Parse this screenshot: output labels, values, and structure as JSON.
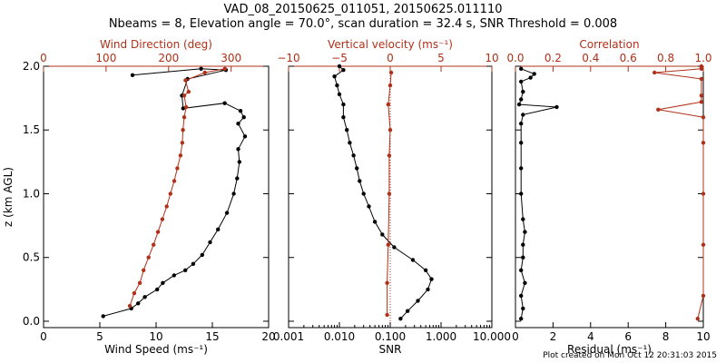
{
  "title_line1": "VAD_08_20150625_011051, 20150625.011110",
  "title_line2": "Nbeams = 8, Elevation angle = 70.0°, scan duration = 32.4 s, SNR Threshold = 0.008",
  "footer": "Plot created on Mon Oct 12 20:31:03 2015",
  "colors": {
    "black": "#000000",
    "red": "#b03018"
  },
  "chart_data": [
    {
      "type": "line",
      "ylabel": "z (km AGL)",
      "ylim": [
        -0.05,
        2.0
      ],
      "yticks": [
        0.0,
        0.5,
        1.0,
        1.5,
        2.0
      ],
      "ytick_labels": [
        "0.0",
        "0.5",
        "1.0",
        "1.5",
        "2.0"
      ],
      "bottom_axis": {
        "label": "Wind Speed (ms⁻¹)",
        "range": [
          0,
          20
        ],
        "ticks": [
          0,
          5,
          10,
          15,
          20
        ],
        "tick_labels": [
          "0",
          "5",
          "10",
          "15",
          "20"
        ]
      },
      "top_axis": {
        "label": "Wind Direction (deg)",
        "range": [
          0,
          360
        ],
        "ticks": [
          0,
          100,
          200,
          300
        ],
        "tick_labels": [
          "0",
          "100",
          "200",
          "300"
        ]
      },
      "series": [
        {
          "axis": "bottom",
          "color": "#000000",
          "points": [
            [
              5.3,
              0.04
            ],
            [
              7.8,
              0.1
            ],
            [
              8.4,
              0.14
            ],
            [
              9.0,
              0.19
            ],
            [
              10.1,
              0.25
            ],
            [
              10.6,
              0.3
            ],
            [
              11.6,
              0.36
            ],
            [
              12.6,
              0.4
            ],
            [
              13.3,
              0.45
            ],
            [
              14.1,
              0.52
            ],
            [
              14.8,
              0.62
            ],
            [
              15.5,
              0.72
            ],
            [
              16.3,
              0.85
            ],
            [
              16.9,
              1.0
            ],
            [
              17.2,
              1.12
            ],
            [
              17.4,
              1.25
            ],
            [
              17.3,
              1.35
            ],
            [
              17.9,
              1.45
            ],
            [
              17.3,
              1.55
            ],
            [
              17.8,
              1.6
            ],
            [
              17.5,
              1.65
            ],
            [
              16.1,
              1.71
            ],
            [
              12.4,
              1.67
            ],
            [
              12.3,
              1.77
            ],
            [
              12.8,
              1.9
            ],
            [
              16.2,
              1.97
            ],
            [
              14.0,
              1.98
            ],
            [
              7.9,
              1.93
            ]
          ]
        },
        {
          "axis": "top",
          "color": "#b03018",
          "points": [
            [
              138,
              0.12
            ],
            [
              145,
              0.22
            ],
            [
              154,
              0.3
            ],
            [
              160,
              0.4
            ],
            [
              168,
              0.5
            ],
            [
              176,
              0.6
            ],
            [
              183,
              0.7
            ],
            [
              190,
              0.8
            ],
            [
              197,
              0.9
            ],
            [
              203,
              1.0
            ],
            [
              209,
              1.1
            ],
            [
              214,
              1.2
            ],
            [
              219,
              1.3
            ],
            [
              222,
              1.4
            ],
            [
              223,
              1.5
            ],
            [
              225,
              1.6
            ],
            [
              228,
              1.68
            ],
            [
              225,
              1.77
            ],
            [
              232,
              1.8
            ],
            [
              227,
              1.89
            ],
            [
              258,
              1.95
            ],
            [
              290,
              1.98
            ]
          ]
        }
      ]
    },
    {
      "type": "line",
      "bottom_axis": {
        "label": "SNR",
        "scale": "log",
        "range": [
          0.001,
          10
        ],
        "ticks": [
          0.001,
          0.01,
          0.1,
          1,
          10
        ],
        "tick_labels": [
          "0.001",
          "0.010",
          "0.100",
          "1.000",
          "10.000"
        ]
      },
      "top_axis": {
        "label": "Vertical velocity (ms⁻¹)",
        "range": [
          -10,
          10
        ],
        "ticks": [
          -10,
          -5,
          0,
          5,
          10
        ],
        "tick_labels": [
          "−10",
          "−5",
          "0",
          "5",
          "10"
        ]
      },
      "series": [
        {
          "axis": "bottom",
          "color": "#000000",
          "points": [
            [
              0.16,
              0.02
            ],
            [
              0.22,
              0.08
            ],
            [
              0.35,
              0.16
            ],
            [
              0.55,
              0.25
            ],
            [
              0.65,
              0.33
            ],
            [
              0.5,
              0.4
            ],
            [
              0.28,
              0.48
            ],
            [
              0.12,
              0.58
            ],
            [
              0.07,
              0.68
            ],
            [
              0.05,
              0.78
            ],
            [
              0.038,
              0.9
            ],
            [
              0.03,
              1.0
            ],
            [
              0.025,
              1.1
            ],
            [
              0.022,
              1.2
            ],
            [
              0.019,
              1.3
            ],
            [
              0.016,
              1.4
            ],
            [
              0.014,
              1.5
            ],
            [
              0.012,
              1.6
            ],
            [
              0.012,
              1.7
            ],
            [
              0.01,
              1.78
            ],
            [
              0.009,
              1.85
            ],
            [
              0.008,
              1.92
            ],
            [
              0.012,
              1.97
            ],
            [
              0.01,
              2.0
            ]
          ]
        },
        {
          "axis": "top",
          "color": "#b03018",
          "points": [
            [
              -0.3,
              0.05
            ],
            [
              -0.3,
              0.3
            ],
            [
              -0.2,
              0.6
            ],
            [
              -0.1,
              1.0
            ],
            [
              -0.1,
              1.3
            ],
            [
              0.0,
              1.5
            ],
            [
              -0.2,
              1.7
            ],
            [
              0.0,
              1.85
            ],
            [
              0.1,
              1.95
            ]
          ]
        },
        {
          "axis": "top",
          "color": "#b03018",
          "style": "dotted",
          "points": [
            [
              0,
              0.0
            ],
            [
              0,
              2.0
            ]
          ]
        }
      ]
    },
    {
      "type": "line",
      "bottom_axis": {
        "label": "Residual (ms⁻¹)",
        "range": [
          0,
          10
        ],
        "ticks": [
          0,
          2,
          4,
          6,
          8,
          10
        ],
        "tick_labels": [
          "0",
          "2",
          "4",
          "6",
          "8",
          "10"
        ]
      },
      "top_axis": {
        "label": "Correlation",
        "range": [
          0,
          1
        ],
        "ticks": [
          0,
          0.2,
          0.4,
          0.6,
          0.8,
          1.0
        ],
        "tick_labels": [
          "0.0",
          "0.2",
          "0.4",
          "0.6",
          "0.8",
          "1.0"
        ]
      },
      "series": [
        {
          "axis": "bottom",
          "color": "#000000",
          "points": [
            [
              0.3,
              0.02
            ],
            [
              0.4,
              0.1
            ],
            [
              0.3,
              0.2
            ],
            [
              0.5,
              0.3
            ],
            [
              0.3,
              0.4
            ],
            [
              0.4,
              0.5
            ],
            [
              0.4,
              0.6
            ],
            [
              0.5,
              0.7
            ],
            [
              0.4,
              0.8
            ],
            [
              0.3,
              1.0
            ],
            [
              0.3,
              1.2
            ],
            [
              0.3,
              1.4
            ],
            [
              0.3,
              1.55
            ],
            [
              0.4,
              1.62
            ],
            [
              2.2,
              1.68
            ],
            [
              0.2,
              1.7
            ],
            [
              0.3,
              1.74
            ],
            [
              0.4,
              1.8
            ],
            [
              0.3,
              1.88
            ],
            [
              0.8,
              1.91
            ],
            [
              1.0,
              1.94
            ],
            [
              0.3,
              1.98
            ]
          ]
        },
        {
          "axis": "top",
          "color": "#b03018",
          "points": [
            [
              0.97,
              0.02
            ],
            [
              1.0,
              0.2
            ],
            [
              1.0,
              0.6
            ],
            [
              1.0,
              1.0
            ],
            [
              1.0,
              1.4
            ],
            [
              1.0,
              1.6
            ],
            [
              0.76,
              1.66
            ],
            [
              0.99,
              1.72
            ],
            [
              0.99,
              1.77
            ],
            [
              0.99,
              1.9
            ],
            [
              0.74,
              1.95
            ],
            [
              0.99,
              1.98
            ],
            [
              0.99,
              2.0
            ]
          ]
        }
      ]
    }
  ]
}
